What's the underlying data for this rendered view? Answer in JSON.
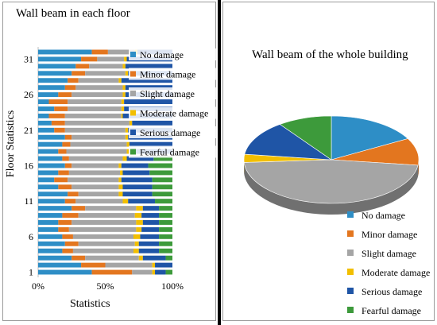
{
  "colors": {
    "No damage": "#2e8ec6",
    "Minor damage": "#e3761f",
    "Slight damage": "#a5a5a5",
    "Moderate damage": "#f2bf00",
    "Serious damage": "#1f55a6",
    "Fearful damage": "#3d9a3b"
  },
  "chart_data": [
    {
      "type": "bar",
      "orientation": "horizontal",
      "stacked": "100%",
      "title": "Wall beam in each floor",
      "xlabel": "Statistics",
      "ylabel": "Floor Statistics",
      "x_ticks": [
        "0%",
        "50%",
        "100%"
      ],
      "y_ticks": [
        "1",
        "6",
        "11",
        "16",
        "21",
        "26",
        "31"
      ],
      "legend_position": "right",
      "series_order": [
        "No damage",
        "Minor damage",
        "Slight damage",
        "Moderate damage",
        "Serious damage",
        "Fearful damage"
      ],
      "categories": [
        "1",
        "2",
        "3",
        "4",
        "5",
        "6",
        "7",
        "8",
        "9",
        "10",
        "11",
        "12",
        "13",
        "14",
        "15",
        "16",
        "17",
        "18",
        "19",
        "20",
        "21",
        "22",
        "23",
        "24",
        "25",
        "26",
        "27",
        "28",
        "29",
        "30",
        "31",
        "32"
      ],
      "values": [
        [
          40,
          30,
          15,
          2,
          8,
          5
        ],
        [
          32,
          18,
          35,
          2,
          13,
          0
        ],
        [
          25,
          10,
          40,
          3,
          17,
          5
        ],
        [
          18,
          8,
          45,
          4,
          15,
          10
        ],
        [
          20,
          10,
          42,
          3,
          15,
          10
        ],
        [
          18,
          8,
          45,
          5,
          14,
          10
        ],
        [
          15,
          8,
          50,
          4,
          13,
          10
        ],
        [
          15,
          10,
          48,
          5,
          12,
          10
        ],
        [
          18,
          12,
          42,
          5,
          13,
          10
        ],
        [
          25,
          10,
          38,
          5,
          12,
          10
        ],
        [
          20,
          8,
          35,
          4,
          20,
          13
        ],
        [
          22,
          8,
          30,
          3,
          22,
          15
        ],
        [
          15,
          10,
          35,
          3,
          22,
          15
        ],
        [
          12,
          10,
          38,
          2,
          23,
          15
        ],
        [
          15,
          8,
          38,
          2,
          20,
          17
        ],
        [
          20,
          5,
          35,
          2,
          20,
          18
        ],
        [
          18,
          5,
          40,
          3,
          20,
          14
        ],
        [
          15,
          6,
          45,
          2,
          32,
          0
        ],
        [
          18,
          6,
          42,
          2,
          32,
          0
        ],
        [
          20,
          5,
          40,
          2,
          33,
          0
        ],
        [
          12,
          8,
          45,
          2,
          33,
          0
        ],
        [
          10,
          10,
          48,
          2,
          30,
          0
        ],
        [
          8,
          12,
          42,
          1,
          37,
          0
        ],
        [
          12,
          10,
          40,
          2,
          36,
          0
        ],
        [
          8,
          14,
          40,
          2,
          36,
          0
        ],
        [
          15,
          10,
          38,
          2,
          35,
          0
        ],
        [
          20,
          8,
          35,
          2,
          35,
          0
        ],
        [
          22,
          8,
          30,
          2,
          38,
          0
        ],
        [
          25,
          10,
          30,
          2,
          33,
          0
        ],
        [
          28,
          10,
          25,
          2,
          35,
          0
        ],
        [
          32,
          12,
          20,
          2,
          34,
          0
        ],
        [
          40,
          12,
          20,
          2,
          26,
          0
        ]
      ]
    },
    {
      "type": "pie",
      "style": "3d",
      "title": "Wall beam of the whole building",
      "legend_position": "bottom",
      "labels": [
        "No damage",
        "Minor damage",
        "Slight damage",
        "Moderate damage",
        "Serious damage",
        "Fearful damage"
      ],
      "values": [
        17,
        10,
        47,
        3,
        13,
        10
      ]
    }
  ]
}
